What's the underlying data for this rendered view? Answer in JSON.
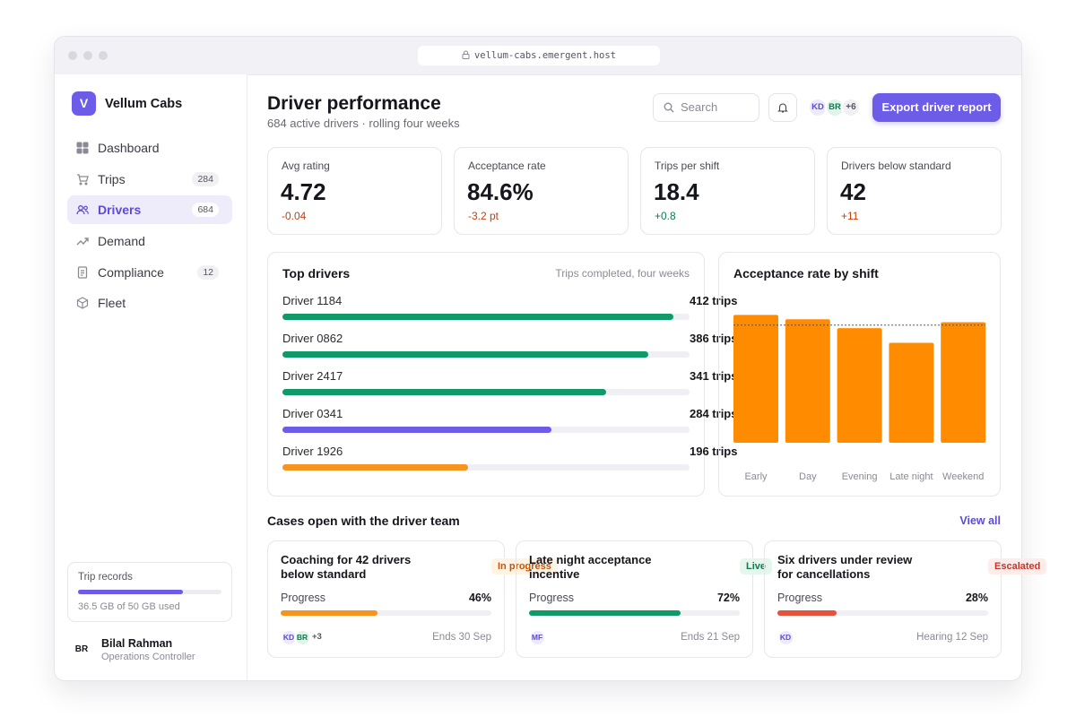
{
  "browser": {
    "url": "vellum-cabs.emergent.host"
  },
  "sidebar": {
    "logo": "V",
    "brand": "Vellum Cabs",
    "nav": [
      {
        "label": "Dashboard"
      },
      {
        "label": "Trips",
        "badge": "284"
      },
      {
        "label": "Drivers",
        "badge": "684",
        "active": true
      },
      {
        "label": "Demand"
      },
      {
        "label": "Compliance",
        "badge": "12"
      },
      {
        "label": "Fleet"
      }
    ],
    "storage": {
      "title": "Trip records",
      "used_gb": 36.5,
      "capacity_gb": 50,
      "usage_label": "36.5 GB of 50 GB used",
      "color": "#6c5ce7"
    },
    "user": {
      "initials": "BR",
      "name": "Bilal Rahman",
      "role": "Operations Controller"
    }
  },
  "header": {
    "title": "Driver performance",
    "subtitle": "684 active drivers · rolling four weeks",
    "search_placeholder": "Search",
    "avatars": [
      {
        "initials": "KD",
        "color": "#5b4bd6",
        "bg": "#ede9fe"
      },
      {
        "initials": "BR",
        "color": "#137a4f",
        "bg": "#dff4ea"
      }
    ],
    "more_avatars": "+6",
    "button": "Export driver report"
  },
  "kpis": [
    {
      "label": "Avg rating",
      "value": "4.72",
      "delta": "-0.04",
      "delta_color": "#c2410c"
    },
    {
      "label": "Acceptance rate",
      "value": "84.6%",
      "delta": "-3.2 pt",
      "delta_color": "#c2410c"
    },
    {
      "label": "Trips per shift",
      "value": "18.4",
      "delta": "+0.8",
      "delta_color": "#0f7a4f"
    },
    {
      "label": "Drivers below standard",
      "value": "42",
      "delta": "+11",
      "delta_color": "#c2410c"
    }
  ],
  "top_drivers": {
    "title": "Top drivers",
    "subtitle": "Trips completed, four weeks",
    "rows": [
      {
        "name": "Driver 1184",
        "trips": 412,
        "label": "412 trips",
        "color": "#109a6a"
      },
      {
        "name": "Driver 0862",
        "trips": 386,
        "label": "386 trips",
        "color": "#109a6a"
      },
      {
        "name": "Driver 2417",
        "trips": 341,
        "label": "341 trips",
        "color": "#109a6a"
      },
      {
        "name": "Driver 0341",
        "trips": 284,
        "label": "284 trips",
        "color": "#6c5ce7"
      },
      {
        "name": "Driver 1926",
        "trips": 196,
        "label": "196 trips",
        "color": "#f7941d"
      }
    ]
  },
  "chart_data": {
    "type": "bar",
    "title": "Acceptance rate by shift",
    "categories": [
      "Early",
      "Day",
      "Evening",
      "Late night",
      "Weekend"
    ],
    "values": [
      87,
      84,
      78,
      68,
      82
    ],
    "color": "#ff8c00",
    "ylim": [
      0,
      100
    ],
    "target": 80
  },
  "cases": {
    "title": "Cases open with the driver team",
    "link": "View all",
    "items": [
      {
        "title": "Coaching for 42 drivers below standard",
        "status": "In progress",
        "status_color": "#c2570c",
        "status_bg": "#fff3e3",
        "progress_title": "Progress",
        "progress": 46,
        "progress_label": "46%",
        "color": "#f7941d",
        "avatars": [
          {
            "initials": "KD",
            "color": "#5b4bd6",
            "bg": "#ede9fe"
          },
          {
            "initials": "BR",
            "color": "#137a4f",
            "bg": "#dff4ea"
          }
        ],
        "more": "+3",
        "due": "Ends 30 Sep"
      },
      {
        "title": "Late night acceptance incentive",
        "status": "Live",
        "status_color": "#0d7a4f",
        "status_bg": "#e5f6ee",
        "progress_title": "Progress",
        "progress": 72,
        "progress_label": "72%",
        "color": "#109a6a",
        "avatars": [
          {
            "initials": "MF",
            "color": "#5b4bd6",
            "bg": "#ede9fe"
          }
        ],
        "due": "Ends 21 Sep"
      },
      {
        "title": "Six drivers under review for cancellations",
        "status": "Escalated",
        "status_color": "#c0392b",
        "status_bg": "#fdecea",
        "progress_title": "Progress",
        "progress": 28,
        "progress_label": "28%",
        "color": "#e5533d",
        "avatars": [
          {
            "initials": "KD",
            "color": "#5b4bd6",
            "bg": "#ede9fe"
          }
        ],
        "due": "Hearing 12 Sep"
      }
    ]
  }
}
